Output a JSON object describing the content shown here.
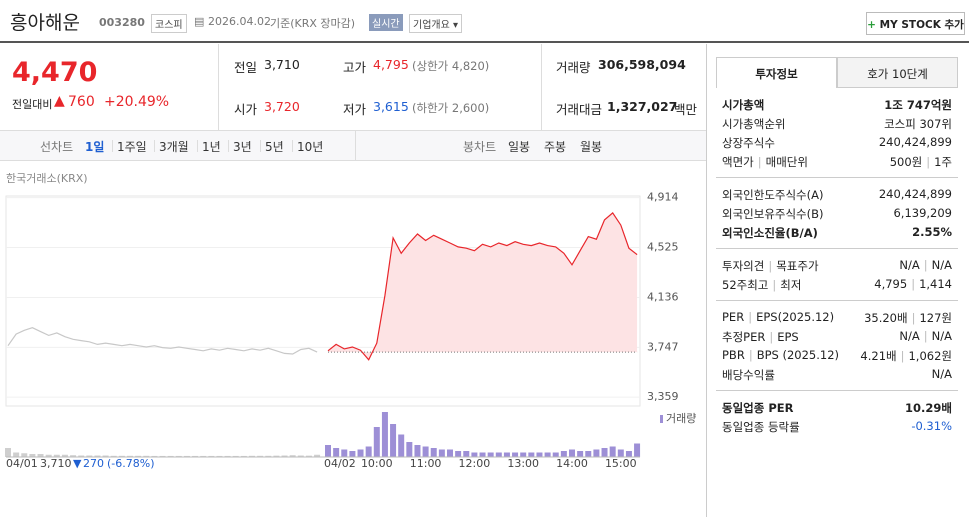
{
  "header": {
    "name": "흥아해운",
    "code": "003280",
    "market": "코스피",
    "date": "2026.04.02",
    "basis": "기준(KRX 장마감)",
    "realtime": "실시간",
    "overview": "기업개요",
    "my_stock": "MY STOCK 추가"
  },
  "price": {
    "current": "4,470",
    "change_label": "전일대비",
    "change": "760",
    "change_pct": "+20.49%"
  },
  "stats": [
    {
      "label": "전일",
      "value": "3,710"
    },
    {
      "label": "고가",
      "value": "4,795",
      "note": "(상한가 4,820)"
    },
    {
      "label": "거래량",
      "value": "306,598,094"
    },
    {
      "label": "시가",
      "value": "3,720"
    },
    {
      "label": "저가",
      "value": "3,615",
      "note": "(하한가 2,600)"
    },
    {
      "label": "거래대금",
      "value": "1,327,027",
      "unit": "백만"
    }
  ],
  "tabs": {
    "line_label": "선차트",
    "line": [
      "1일",
      "1주일",
      "3개월",
      "1년",
      "3년",
      "5년",
      "10년"
    ],
    "candle_label": "봉차트",
    "candle": [
      "일봉",
      "주봉",
      "월봉"
    ]
  },
  "chart_data": {
    "type": "line",
    "source": "한국거래소(KRX)",
    "volume_label": "거래량",
    "ylim": [
      3290,
      5020
    ],
    "yticks": [
      {
        "value": 4914,
        "label": "4,914"
      },
      {
        "value": 4525,
        "label": "4,525"
      },
      {
        "value": 4136,
        "label": "4,136"
      },
      {
        "value": 3747,
        "label": "3,747"
      },
      {
        "value": 3359,
        "label": "3,359"
      }
    ],
    "vlim": [
      0,
      32000000
    ],
    "xticks": [
      "10:00",
      "11:00",
      "12:00",
      "13:00",
      "14:00",
      "15:00"
    ],
    "x": [
      "09:00",
      "09:10",
      "09:20",
      "09:30",
      "09:40",
      "09:50",
      "10:00",
      "10:10",
      "10:20",
      "10:30",
      "10:40",
      "10:50",
      "11:00",
      "11:10",
      "11:20",
      "11:30",
      "11:40",
      "11:50",
      "12:00",
      "12:10",
      "12:20",
      "12:30",
      "12:40",
      "12:50",
      "13:00",
      "13:10",
      "13:20",
      "13:30",
      "13:40",
      "13:50",
      "14:00",
      "14:10",
      "14:20",
      "14:30",
      "14:40",
      "14:50",
      "15:00",
      "15:10",
      "15:20"
    ],
    "sessions": [
      {
        "date": "04/01",
        "color": "#c8c8c8",
        "volume_color": "#cfcfcf",
        "close": {
          "value": 3710,
          "label": "3,710"
        },
        "change": "270",
        "change_pct": "(-6.78%)",
        "values": [
          3760,
          3850,
          3880,
          3900,
          3870,
          3840,
          3860,
          3830,
          3810,
          3800,
          3790,
          3770,
          3780,
          3770,
          3760,
          3770,
          3760,
          3750,
          3760,
          3745,
          3740,
          3750,
          3740,
          3730,
          3720,
          3735,
          3725,
          3740,
          3730,
          3720,
          3735,
          3725,
          3740,
          3720,
          3700,
          3695,
          3730,
          3740,
          3710
        ],
        "volume": [
          6000000,
          3000000,
          2500000,
          2000000,
          2000000,
          1500000,
          1500000,
          1500000,
          1200000,
          1000000,
          1000000,
          1000000,
          1000000,
          800000,
          800000,
          800000,
          800000,
          800000,
          700000,
          700000,
          700000,
          700000,
          700000,
          700000,
          700000,
          700000,
          700000,
          700000,
          700000,
          700000,
          800000,
          800000,
          800000,
          900000,
          1000000,
          1200000,
          1000000,
          900000,
          1500000
        ]
      },
      {
        "date": "04/02",
        "color": "#e8262b",
        "fill": "#fde3e4",
        "volume_color": "#9d8fd6",
        "values": [
          3720,
          3770,
          3735,
          3750,
          3725,
          3650,
          3780,
          4150,
          4600,
          4480,
          4560,
          4630,
          4580,
          4620,
          4590,
          4560,
          4530,
          4520,
          4500,
          4550,
          4530,
          4560,
          4540,
          4570,
          4550,
          4540,
          4560,
          4540,
          4530,
          4480,
          4390,
          4500,
          4610,
          4590,
          4740,
          4795,
          4700,
          4520,
          4470
        ],
        "volume": [
          8000000,
          6000000,
          5000000,
          4000000,
          5000000,
          7000000,
          20000000,
          30000000,
          22000000,
          15000000,
          10000000,
          8000000,
          7000000,
          6000000,
          5000000,
          5000000,
          4000000,
          4000000,
          3000000,
          3000000,
          3000000,
          3000000,
          3000000,
          3000000,
          3000000,
          3000000,
          3000000,
          3000000,
          3000000,
          4000000,
          5000000,
          4000000,
          4000000,
          5000000,
          6000000,
          7000000,
          5000000,
          4000000,
          9000000
        ]
      }
    ]
  },
  "invest": {
    "tabs": [
      "투자정보",
      "호가 10단계"
    ],
    "groups": [
      [
        {
          "label": [
            "시가총액"
          ],
          "value": [
            "1조 747억원"
          ],
          "strong": true
        },
        {
          "label": [
            "시가총액순위"
          ],
          "value": [
            "코스피 307위"
          ]
        },
        {
          "label": [
            "상장주식수"
          ],
          "value": [
            "240,424,899"
          ]
        },
        {
          "label": [
            "액면가",
            "매매단위"
          ],
          "value": [
            "500원",
            "1주"
          ]
        }
      ],
      [
        {
          "label": [
            "외국인한도주식수(A)"
          ],
          "value": [
            "240,424,899"
          ]
        },
        {
          "label": [
            "외국인보유주식수(B)"
          ],
          "value": [
            "6,139,209"
          ]
        },
        {
          "label": [
            "외국인소진율(B/A)"
          ],
          "value": [
            "2.55%"
          ],
          "strong": true
        }
      ],
      [
        {
          "label": [
            "투자의견",
            "목표주가"
          ],
          "value": [
            "N/A",
            "N/A"
          ]
        },
        {
          "label": [
            "52주최고",
            "최저"
          ],
          "value": [
            "4,795",
            "1,414"
          ]
        }
      ],
      [
        {
          "label": [
            "PER",
            "EPS(2025.12)"
          ],
          "value": [
            "35.20배",
            "127원"
          ]
        },
        {
          "label": [
            "추정PER",
            "EPS"
          ],
          "value": [
            "N/A",
            "N/A"
          ]
        },
        {
          "label": [
            "PBR",
            "BPS (2025.12)"
          ],
          "value": [
            "4.21배",
            "1,062원"
          ]
        },
        {
          "label": [
            "배당수익률"
          ],
          "value": [
            "N/A"
          ]
        }
      ],
      [
        {
          "label": [
            "동일업종 PER"
          ],
          "value": [
            "10.29배"
          ],
          "strong": true
        },
        {
          "label": [
            "동일업종 등락률"
          ],
          "value": [
            "-0.31%"
          ],
          "down": true
        }
      ]
    ]
  }
}
